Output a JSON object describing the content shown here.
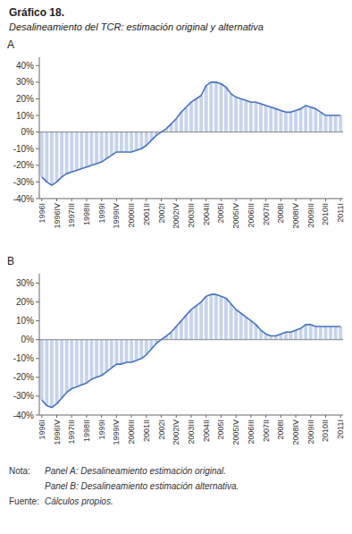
{
  "title": "Gráfico 18.",
  "subtitle": "Desalineamiento del TCR: estimación original y alternativa",
  "annotations": [
    "Nota:",
    "Panel A: Desalineamiento estimación original.",
    "Panel B: Desalineamiento estimación alternativa.",
    "Fuente:",
    "Cálculos propios."
  ],
  "chart_data": [
    {
      "type": "area",
      "title": "A",
      "categories": [
        "1996I",
        null,
        null,
        "1996IV",
        null,
        null,
        "1997III",
        null,
        null,
        "1998II",
        null,
        null,
        "1999I",
        null,
        null,
        "1999IV",
        null,
        null,
        "2000III",
        null,
        null,
        "2001II",
        null,
        null,
        "2002I",
        null,
        null,
        "2002IV",
        null,
        null,
        "2003III",
        null,
        null,
        "2004II",
        null,
        null,
        "2005I",
        null,
        null,
        "2005IV",
        null,
        null,
        "2006III",
        null,
        null,
        "2007II",
        null,
        null,
        "2008I",
        null,
        null,
        "2008IV",
        null,
        null,
        "2009III",
        null,
        null,
        "2010II",
        null,
        null,
        "2011I"
      ],
      "values": [
        -27,
        -30,
        -32,
        -30,
        -27,
        -25,
        -24,
        -23,
        -22,
        -21,
        -20,
        -19,
        -18,
        -16,
        -14,
        -12,
        -12,
        -12,
        -12,
        -11,
        -10,
        -8,
        -5,
        -2,
        0,
        2,
        5,
        8,
        12,
        15,
        18,
        20,
        22,
        28,
        30,
        30,
        29,
        27,
        23,
        21,
        20,
        19,
        18,
        18,
        17,
        16,
        15,
        14,
        13,
        12,
        12,
        13,
        14,
        16,
        15,
        14,
        12,
        10,
        10,
        10,
        10
      ],
      "color": "#4472C4",
      "ylim": [
        -40,
        45
      ],
      "yticks": [
        {
          "value": -40,
          "label": "-40%"
        },
        {
          "value": -30,
          "label": "-30%"
        },
        {
          "value": -20,
          "label": "-20%"
        },
        {
          "value": -10,
          "label": "-10%"
        },
        {
          "value": 0,
          "label": "0%"
        },
        {
          "value": 10,
          "label": "10%"
        },
        {
          "value": 20,
          "label": "20%"
        },
        {
          "value": 30,
          "label": "30%"
        },
        {
          "value": 40,
          "label": "40%"
        }
      ],
      "grid": false
    },
    {
      "type": "area",
      "title": "B",
      "categories": [
        "1996I",
        null,
        null,
        "1996IV",
        null,
        null,
        "1997III",
        null,
        null,
        "1998II",
        null,
        null,
        "1999I",
        null,
        null,
        "1999IV",
        null,
        null,
        "2000III",
        null,
        null,
        "2001II",
        null,
        null,
        "2002I",
        null,
        null,
        "2002IV",
        null,
        null,
        "2003III",
        null,
        null,
        "2004II",
        null,
        null,
        "2005I",
        null,
        null,
        "2005IV",
        null,
        null,
        "2006III",
        null,
        null,
        "2007II",
        null,
        null,
        "2008I",
        null,
        null,
        "2008IV",
        null,
        null,
        "2009III",
        null,
        null,
        "2010II",
        null,
        null,
        "2011I"
      ],
      "values": [
        -32,
        -35,
        -36,
        -34,
        -31,
        -28,
        -26,
        -25,
        -24,
        -23,
        -21,
        -20,
        -19,
        -17,
        -15,
        -13,
        -13,
        -12,
        -12,
        -11,
        -10,
        -8,
        -5,
        -2,
        0,
        2,
        4,
        7,
        10,
        13,
        16,
        18,
        20,
        23,
        24,
        24,
        23,
        22,
        19,
        16,
        14,
        12,
        10,
        8,
        5,
        3,
        2,
        2,
        3,
        4,
        4,
        5,
        6,
        8,
        8,
        7,
        7,
        7,
        7,
        7,
        7
      ],
      "color": "#4472C4",
      "ylim": [
        -40,
        35
      ],
      "yticks": [
        {
          "value": -40,
          "label": "-40%"
        },
        {
          "value": -30,
          "label": "-30%"
        },
        {
          "value": -20,
          "label": "-20%"
        },
        {
          "value": -10,
          "label": "-10%"
        },
        {
          "value": 0,
          "label": "0%"
        },
        {
          "value": 10,
          "label": "10%"
        },
        {
          "value": 20,
          "label": "20%"
        },
        {
          "value": 30,
          "label": "30%"
        }
      ],
      "grid": false
    }
  ]
}
